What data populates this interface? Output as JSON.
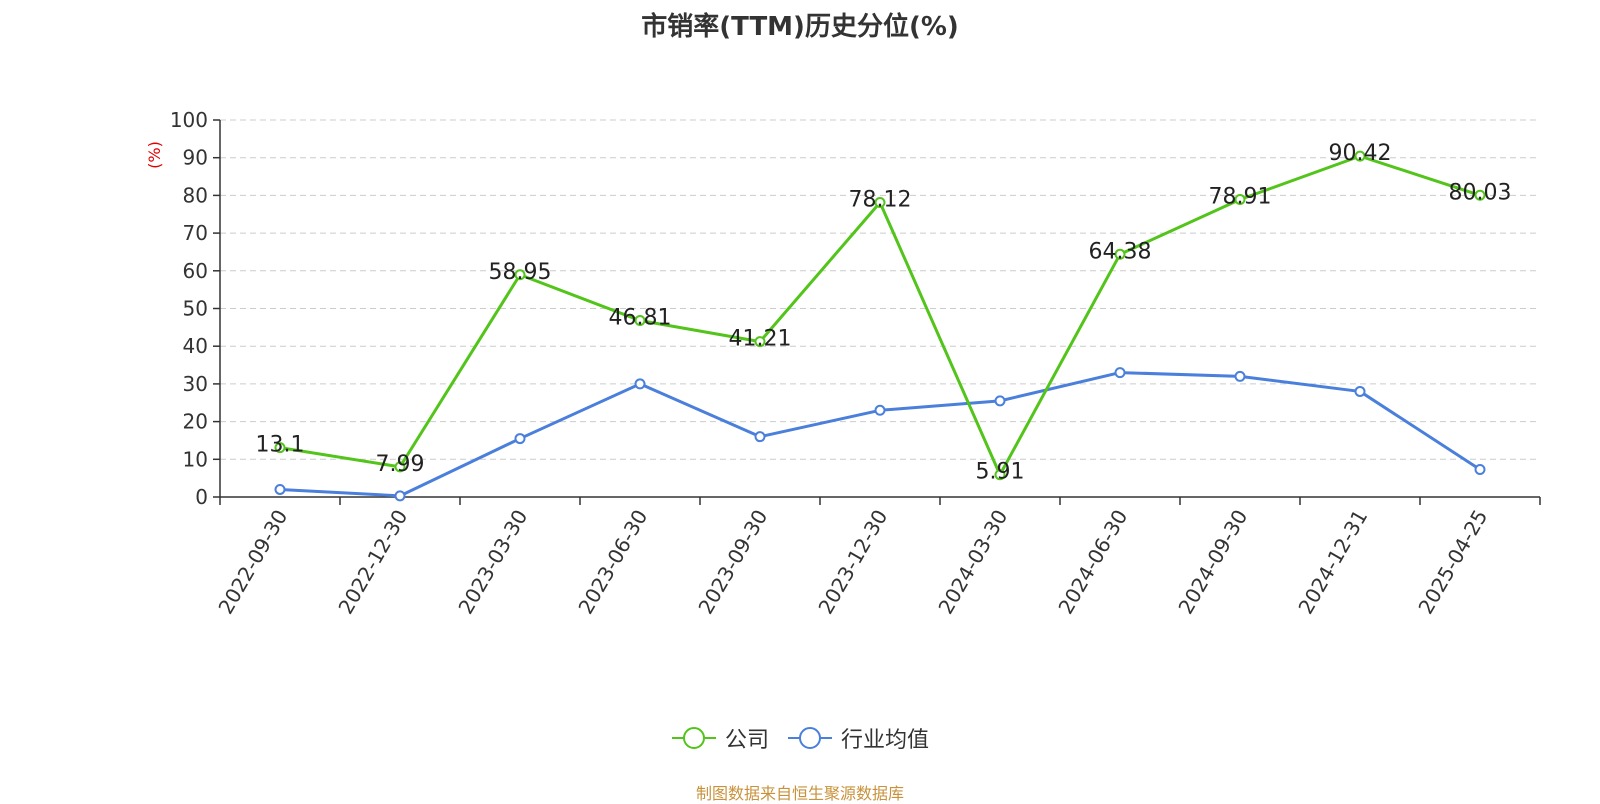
{
  "title": "市销率(TTM)历史分位(%)",
  "source": "制图数据来自恒生聚源数据库",
  "colors": {
    "company": "#52c41a",
    "industry": "#4a7fdc",
    "ylabel": "#e00000",
    "axis": "#333333",
    "grid": "#cccccc",
    "source": "#c8923c"
  },
  "chart_data": {
    "type": "line",
    "categories": [
      "2022-09-30",
      "2022-12-30",
      "2023-03-30",
      "2023-06-30",
      "2023-09-30",
      "2023-12-30",
      "2024-03-30",
      "2024-06-30",
      "2024-09-30",
      "2024-12-31",
      "2025-04-25"
    ],
    "ylabel": "(%)",
    "ylim": [
      0,
      100
    ],
    "yticks": [
      0,
      10,
      20,
      30,
      40,
      50,
      60,
      70,
      80,
      90,
      100
    ],
    "grid": true,
    "legend_position": "bottom",
    "series": [
      {
        "name": "公司",
        "values": [
          13.1,
          7.99,
          58.95,
          46.81,
          41.21,
          78.12,
          5.91,
          64.38,
          78.91,
          90.42,
          80.03
        ],
        "labels": [
          "13.1",
          "7.99",
          "58.95",
          "46.81",
          "41.21",
          "78.12",
          "5.91",
          "64.38",
          "78.91",
          "90.42",
          "80.03"
        ]
      },
      {
        "name": "行业均值",
        "values": [
          2.0,
          0.3,
          15.5,
          30.0,
          16.0,
          23.0,
          25.5,
          33.0,
          32.0,
          28.0,
          7.3
        ]
      }
    ]
  }
}
